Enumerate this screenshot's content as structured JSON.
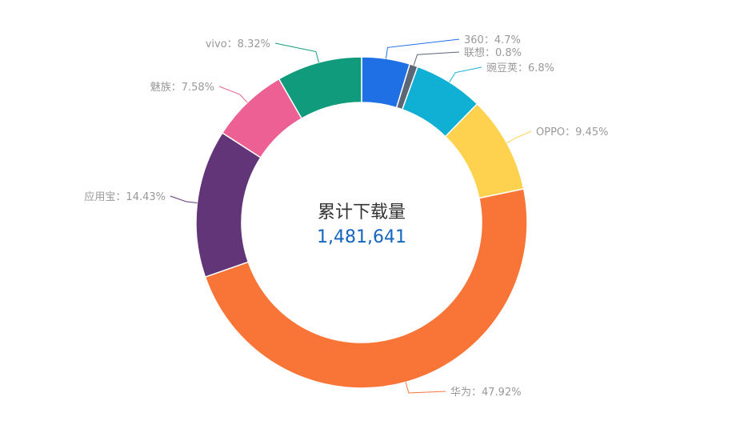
{
  "center": {
    "title": "累计下载量",
    "value": "1,481,641"
  },
  "colors": {
    "value_text": "#1565c0",
    "label_text": "#999999"
  },
  "chart_data": {
    "type": "pie",
    "donut": true,
    "title": "",
    "separator": "：",
    "slices": [
      {
        "name": "360",
        "value": 4.7,
        "label": "4.7%",
        "color": "#1f6fe5"
      },
      {
        "name": "联想",
        "value": 0.8,
        "label": "0.8%",
        "color": "#5b6677"
      },
      {
        "name": "豌豆荚",
        "value": 6.8,
        "label": "6.8%",
        "color": "#0fb0d3"
      },
      {
        "name": "OPPO",
        "value": 9.45,
        "label": "9.45%",
        "color": "#fed24e"
      },
      {
        "name": "华为",
        "value": 47.92,
        "label": "47.92%",
        "color": "#f87537"
      },
      {
        "name": "应用宝",
        "value": 14.43,
        "label": "14.43%",
        "color": "#623578"
      },
      {
        "name": "魅族",
        "value": 7.58,
        "label": "7.58%",
        "color": "#ec6093"
      },
      {
        "name": "vivo",
        "value": 8.32,
        "label": "8.32%",
        "color": "#0f9b7c"
      }
    ]
  }
}
